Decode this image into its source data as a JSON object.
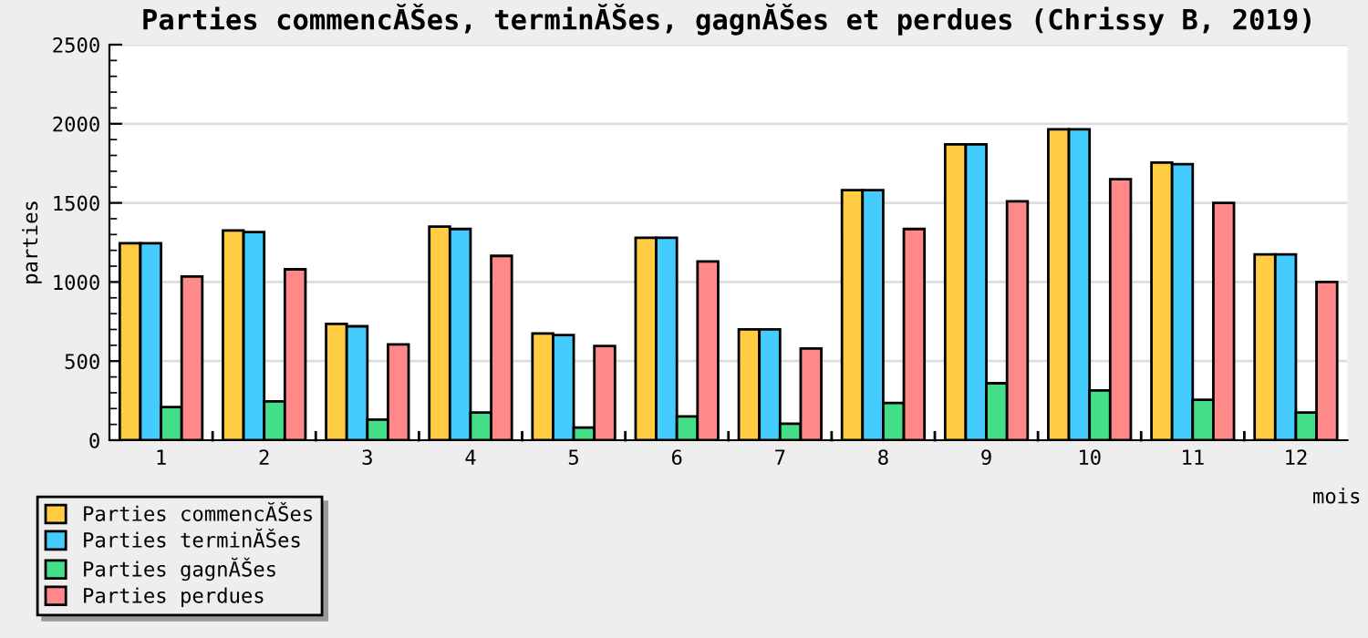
{
  "chart_data": {
    "type": "bar",
    "title": "Parties commencĂŠes, terminĂŠes, gagnĂŠes et perdues (Chrissy B, 2019)",
    "xlabel": "mois",
    "ylabel": "parties",
    "categories": [
      "1",
      "2",
      "3",
      "4",
      "5",
      "6",
      "7",
      "8",
      "9",
      "10",
      "11",
      "12"
    ],
    "series": [
      {
        "name": "Parties commencĂŠes",
        "color": "#ffcc44",
        "values": [
          1245,
          1325,
          735,
          1350,
          675,
          1280,
          700,
          1580,
          1870,
          1965,
          1755,
          1175
        ]
      },
      {
        "name": "Parties terminĂŠes",
        "color": "#44ccff",
        "values": [
          1245,
          1315,
          720,
          1335,
          665,
          1280,
          700,
          1580,
          1870,
          1965,
          1745,
          1175
        ]
      },
      {
        "name": "Parties gagnĂŠes",
        "color": "#44dd88",
        "values": [
          210,
          245,
          130,
          175,
          80,
          150,
          105,
          235,
          360,
          315,
          255,
          175
        ]
      },
      {
        "name": "Parties perdues",
        "color": "#ff8888",
        "values": [
          1035,
          1080,
          605,
          1165,
          595,
          1130,
          580,
          1335,
          1510,
          1650,
          1500,
          1000
        ]
      }
    ],
    "ylim": [
      0,
      2500
    ],
    "yticks": [
      0,
      500,
      1000,
      1500,
      2000,
      2500
    ],
    "grid": "y",
    "legend": "bottom left"
  }
}
